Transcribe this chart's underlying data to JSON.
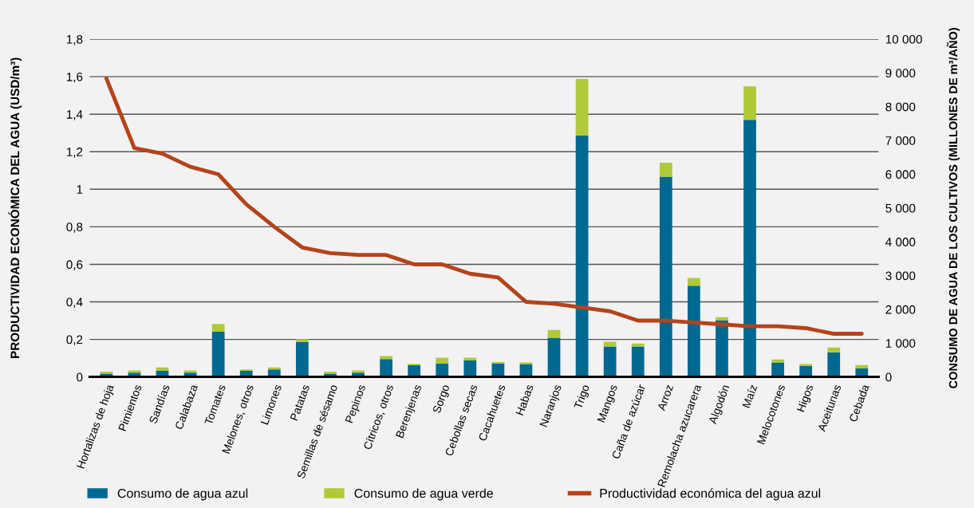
{
  "chart_data": {
    "type": "bar",
    "ylabel": "PRODUCTIVIDAD ECONÓMICA DEL AGUA (USD/m³)",
    "y2label": "CONSUMO DE AGUA DE LOS CULTIVOS (MILLONES DE m³/AÑO)",
    "categories": [
      "Hortalizas de hoja",
      "Pimientos",
      "Sandías",
      "Calabaza",
      "Tomates",
      "Melones, otros",
      "Limones",
      "Patatas",
      "Semillas de sésamo",
      "Pepinos",
      "Cítricos, otros",
      "Berenjenas",
      "Sorgo",
      "Cebollas secas",
      "Cacahuetes",
      "Habas",
      "Naranjos",
      "Trigo",
      "Mangos",
      "Caña de azúcar",
      "Arroz",
      "Remolacha azucarera",
      "Algodón",
      "Maíz",
      "Melocotones",
      "Higos",
      "Aceitunas",
      "Cebada"
    ],
    "stacked": true,
    "grid": "y",
    "legend": "bottom",
    "series": [
      {
        "name": "Consumo de agua azul",
        "axis": "y2",
        "color": "#006991",
        "values": [
          100,
          130,
          180,
          130,
          1340,
          180,
          220,
          1030,
          100,
          130,
          530,
          350,
          400,
          490,
          400,
          380,
          1160,
          7150,
          900,
          900,
          5930,
          2700,
          1680,
          7610,
          430,
          330,
          730,
          260
        ]
      },
      {
        "name": "Consumo de agua verde",
        "axis": "y2",
        "color": "#afca37",
        "values": [
          60,
          60,
          100,
          60,
          230,
          40,
          60,
          90,
          60,
          60,
          90,
          40,
          170,
          80,
          40,
          50,
          230,
          1670,
          140,
          90,
          410,
          230,
          90,
          990,
          90,
          50,
          140,
          90
        ]
      },
      {
        "name": "Productividad económica del agua azul",
        "type": "line",
        "axis": "y",
        "color": "#b5431a",
        "values": [
          1.59,
          1.22,
          1.19,
          1.12,
          1.08,
          0.92,
          0.8,
          0.69,
          0.66,
          0.65,
          0.65,
          0.6,
          0.6,
          0.55,
          0.53,
          0.4,
          0.39,
          0.37,
          0.35,
          0.3,
          0.3,
          0.29,
          0.28,
          0.27,
          0.27,
          0.26,
          0.23,
          0.23
        ]
      }
    ],
    "ylim": [
      0,
      1.8
    ],
    "yticks": [
      0,
      {
        "value": 0.2,
        "label": "0,2"
      },
      {
        "value": 0.4,
        "label": "0,4"
      },
      {
        "value": 0.6,
        "label": "0,6"
      },
      {
        "value": 0.8,
        "label": "0,8"
      },
      1,
      {
        "value": 1.2,
        "label": "1,2"
      },
      {
        "value": 1.4,
        "label": "1,4"
      },
      {
        "value": 1.6,
        "label": "1,6"
      },
      {
        "value": 1.8,
        "label": "1,8"
      }
    ],
    "y2lim": [
      0,
      10000
    ],
    "y2ticks": [
      0,
      {
        "value": 1000,
        "label": "1 000"
      },
      {
        "value": 2000,
        "label": "2 000"
      },
      {
        "value": 3000,
        "label": "3 000"
      },
      {
        "value": 4000,
        "label": "4 000"
      },
      {
        "value": 5000,
        "label": "5 000"
      },
      {
        "value": 6000,
        "label": "6 000"
      },
      {
        "value": 7000,
        "label": "7 000"
      },
      {
        "value": 8000,
        "label": "8 000"
      },
      {
        "value": 9000,
        "label": "9 000"
      },
      {
        "value": 10000,
        "label": "10 000"
      }
    ]
  }
}
